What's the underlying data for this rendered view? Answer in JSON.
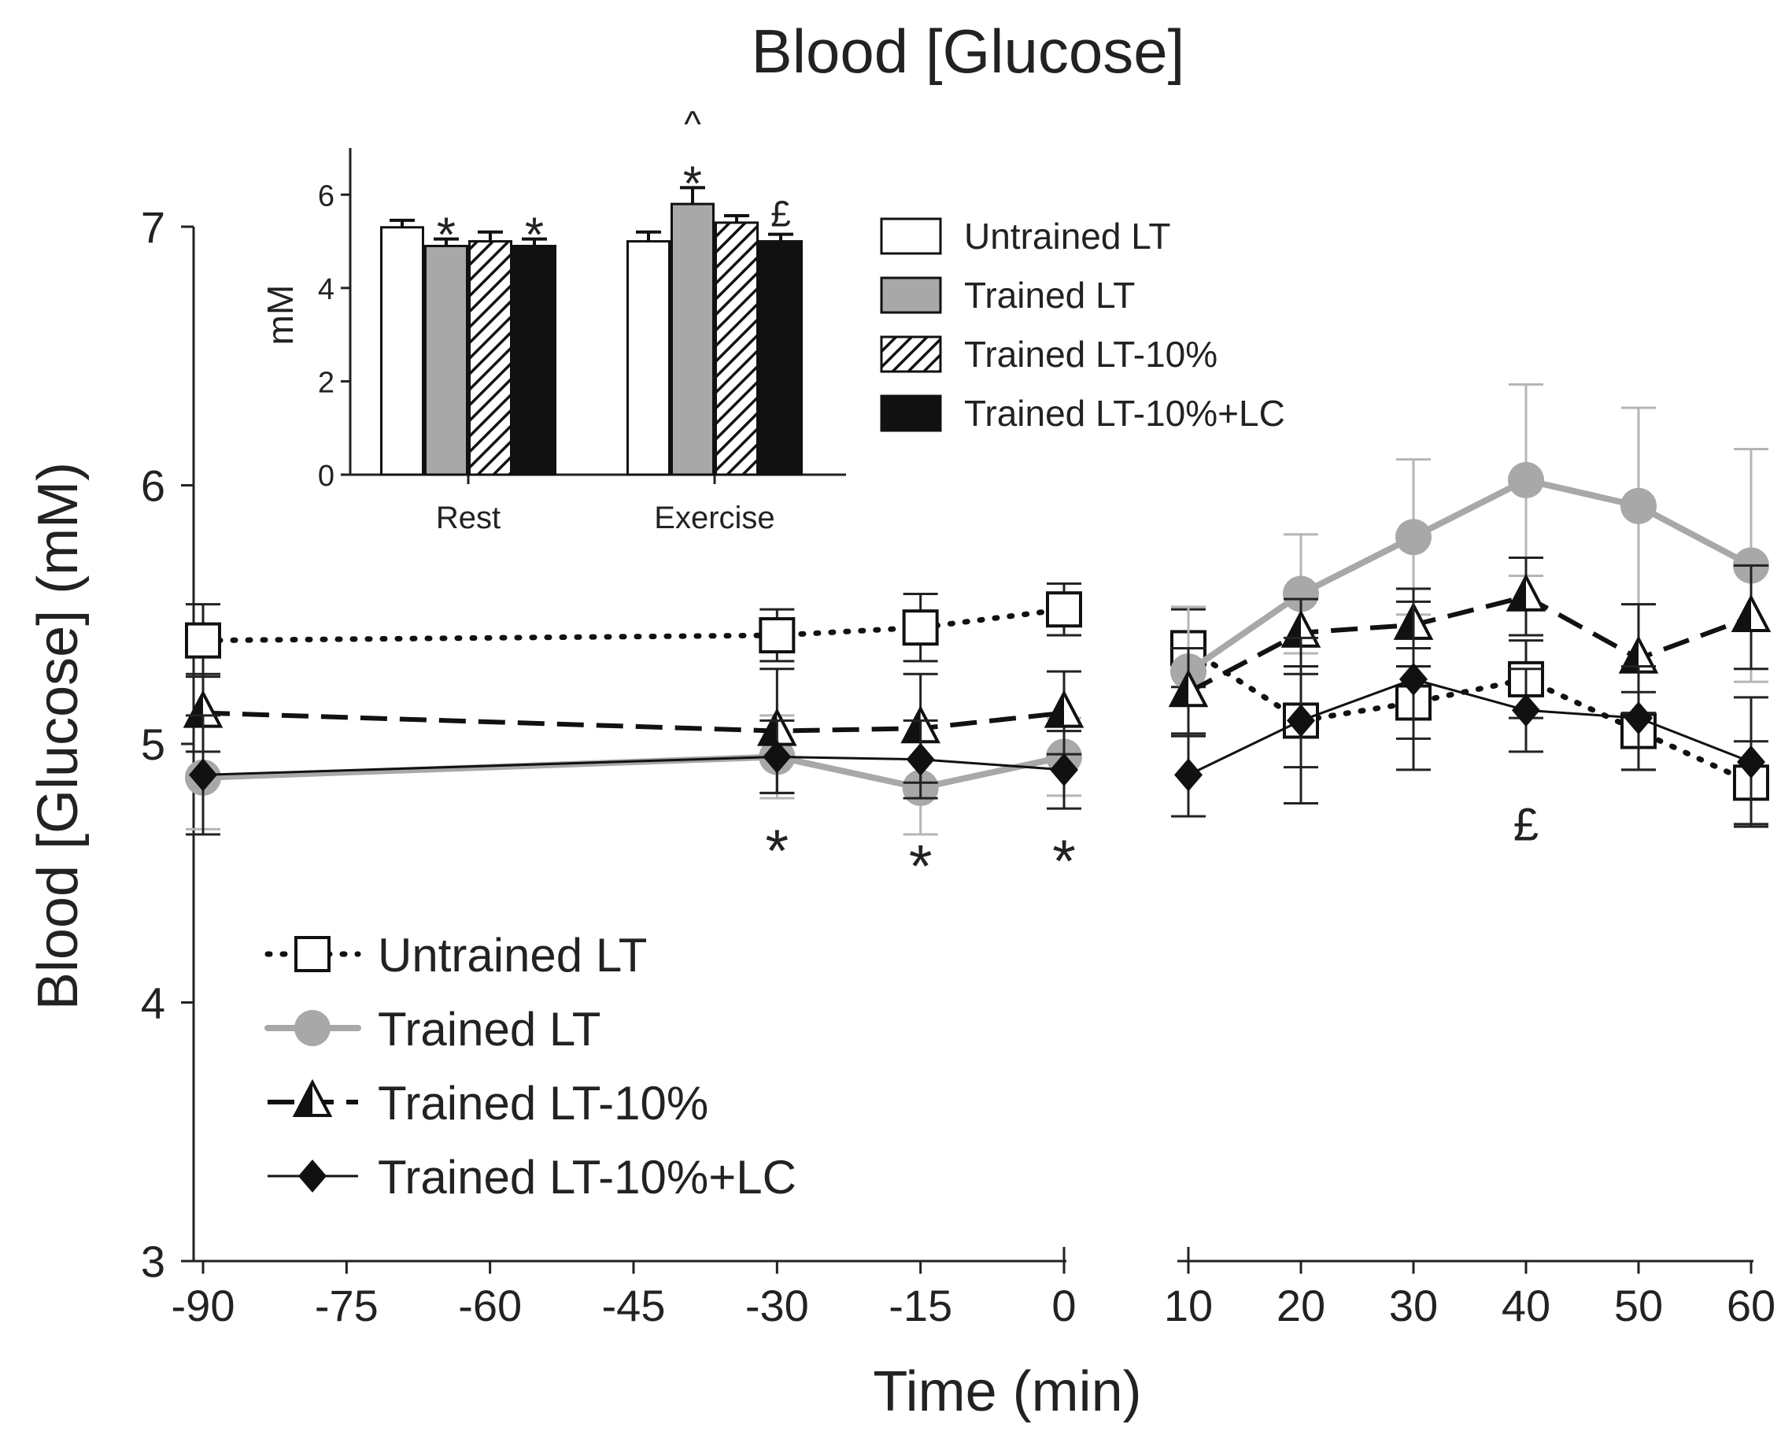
{
  "chart_data": [
    {
      "type": "line",
      "title": "Blood [Glucose]",
      "xlabel": "Time (min)",
      "ylabel": "Blood [Glucose] (mM)",
      "ylim": [
        3,
        7
      ],
      "y_ticks": [
        "3",
        "4",
        "5",
        "6",
        "7"
      ],
      "x_segments": [
        {
          "range": [
            -90,
            0
          ],
          "ticks": [
            -90,
            -75,
            -60,
            -45,
            -30,
            -15,
            0
          ],
          "tick_labels": [
            "-90",
            "-75",
            "-60",
            "-45",
            "-30",
            "-15",
            "0"
          ]
        },
        {
          "range": [
            10,
            60
          ],
          "ticks": [
            10,
            20,
            30,
            40,
            50,
            60
          ],
          "tick_labels": [
            "10",
            "20",
            "30",
            "40",
            "50",
            "60"
          ]
        }
      ],
      "series": [
        {
          "name": "Untrained LT",
          "marker": "open-square",
          "line_style": "dotted",
          "color": "#111111",
          "segments": [
            {
              "x": [
                -90,
                -30,
                -15,
                0
              ],
              "y": [
                5.4,
                5.42,
                5.45,
                5.52
              ],
              "err": [
                0.14,
                0.1,
                0.13,
                0.1
              ]
            },
            {
              "x": [
                10,
                20,
                30,
                40,
                50,
                60
              ],
              "y": [
                5.37,
                5.09,
                5.16,
                5.25,
                5.05,
                4.85
              ],
              "err": [
                0.15,
                0.18,
                0.14,
                0.15,
                0.15,
                0.16
              ]
            }
          ]
        },
        {
          "name": "Trained LT",
          "marker": "filled-circle",
          "line_style": "solid-thick",
          "color": "#a8a8a8",
          "segments": [
            {
              "x": [
                -90,
                -30,
                -15,
                0
              ],
              "y": [
                4.87,
                4.95,
                4.83,
                4.95
              ],
              "err": [
                0.2,
                0.16,
                0.18,
                0.15
              ]
            },
            {
              "x": [
                10,
                20,
                30,
                40,
                50,
                60
              ],
              "y": [
                5.28,
                5.58,
                5.8,
                6.02,
                5.92,
                5.69
              ],
              "err": [
                0.25,
                0.23,
                0.3,
                0.37,
                0.38,
                0.45
              ]
            }
          ]
        },
        {
          "name": "Trained LT-10%",
          "marker": "half-triangle",
          "line_style": "dashed",
          "color": "#111111",
          "segments": [
            {
              "x": [
                -90,
                -30,
                -15,
                0
              ],
              "y": [
                5.12,
                5.05,
                5.06,
                5.12
              ],
              "err": [
                0.15,
                0.24,
                0.21,
                0.16
              ]
            },
            {
              "x": [
                10,
                20,
                30,
                40,
                50,
                60
              ],
              "y": [
                5.2,
                5.43,
                5.46,
                5.57,
                5.33,
                5.49
              ],
              "err": [
                0.17,
                0.13,
                0.09,
                0.15,
                0.21,
                0.2
              ]
            }
          ]
        },
        {
          "name": "Trained LT-10%+LC",
          "marker": "filled-diamond",
          "line_style": "solid-thin",
          "color": "#111111",
          "segments": [
            {
              "x": [
                -90,
                -30,
                -15,
                0
              ],
              "y": [
                4.88,
                4.95,
                4.94,
                4.9
              ],
              "err": [
                0.23,
                0.14,
                0.15,
                0.15
              ]
            },
            {
              "x": [
                10,
                20,
                30,
                40,
                50,
                60
              ],
              "y": [
                4.88,
                5.09,
                5.25,
                5.13,
                5.1,
                4.93
              ],
              "err": [
                0.16,
                0.32,
                0.35,
                0.16,
                0.2,
                0.25
              ]
            }
          ]
        }
      ],
      "annotations": [
        {
          "text": "*",
          "x": -30,
          "y": 4.58
        },
        {
          "text": "*",
          "x": -15,
          "y": 4.52
        },
        {
          "text": "*",
          "x": 0,
          "y": 4.54
        },
        {
          "text": "£",
          "x": 40,
          "y": 4.7
        }
      ],
      "legend": {
        "placement": "bottom-left",
        "entries": [
          "Untrained LT",
          "Trained LT",
          "Trained LT-10%",
          "Trained LT-10%+LC"
        ]
      }
    },
    {
      "type": "bar",
      "inset": true,
      "ylabel": "mM",
      "ylim": [
        0,
        7
      ],
      "y_ticks": [
        "0",
        "2",
        "4",
        "6"
      ],
      "categories": [
        "Rest",
        "Exercise"
      ],
      "series": [
        {
          "name": "Untrained LT",
          "fill": "white",
          "values": [
            5.3,
            5.0
          ],
          "err": [
            0.15,
            0.2
          ]
        },
        {
          "name": "Trained LT",
          "fill": "gray",
          "values": [
            4.9,
            5.8
          ],
          "err": [
            0.15,
            0.35
          ]
        },
        {
          "name": "Trained LT-10%",
          "fill": "hatched",
          "values": [
            5.0,
            5.4
          ],
          "err": [
            0.2,
            0.15
          ]
        },
        {
          "name": "Trained LT-10%+LC",
          "fill": "black",
          "values": [
            4.9,
            5.0
          ],
          "err": [
            0.15,
            0.15
          ]
        }
      ],
      "annotations": [
        {
          "category": "Rest",
          "series": "Trained LT",
          "text": "*"
        },
        {
          "category": "Rest",
          "series": "Trained LT-10%+LC",
          "text": "*"
        },
        {
          "category": "Exercise",
          "series": "Trained LT",
          "text": "*"
        },
        {
          "category": "Exercise",
          "series": "Trained LT",
          "text": "^"
        },
        {
          "category": "Exercise",
          "series": "Trained LT-10%+LC",
          "text": "£"
        }
      ],
      "legend": {
        "placement": "right",
        "entries": [
          "Untrained LT",
          "Trained LT",
          "Trained LT-10%",
          "Trained LT-10%+LC"
        ]
      }
    }
  ]
}
